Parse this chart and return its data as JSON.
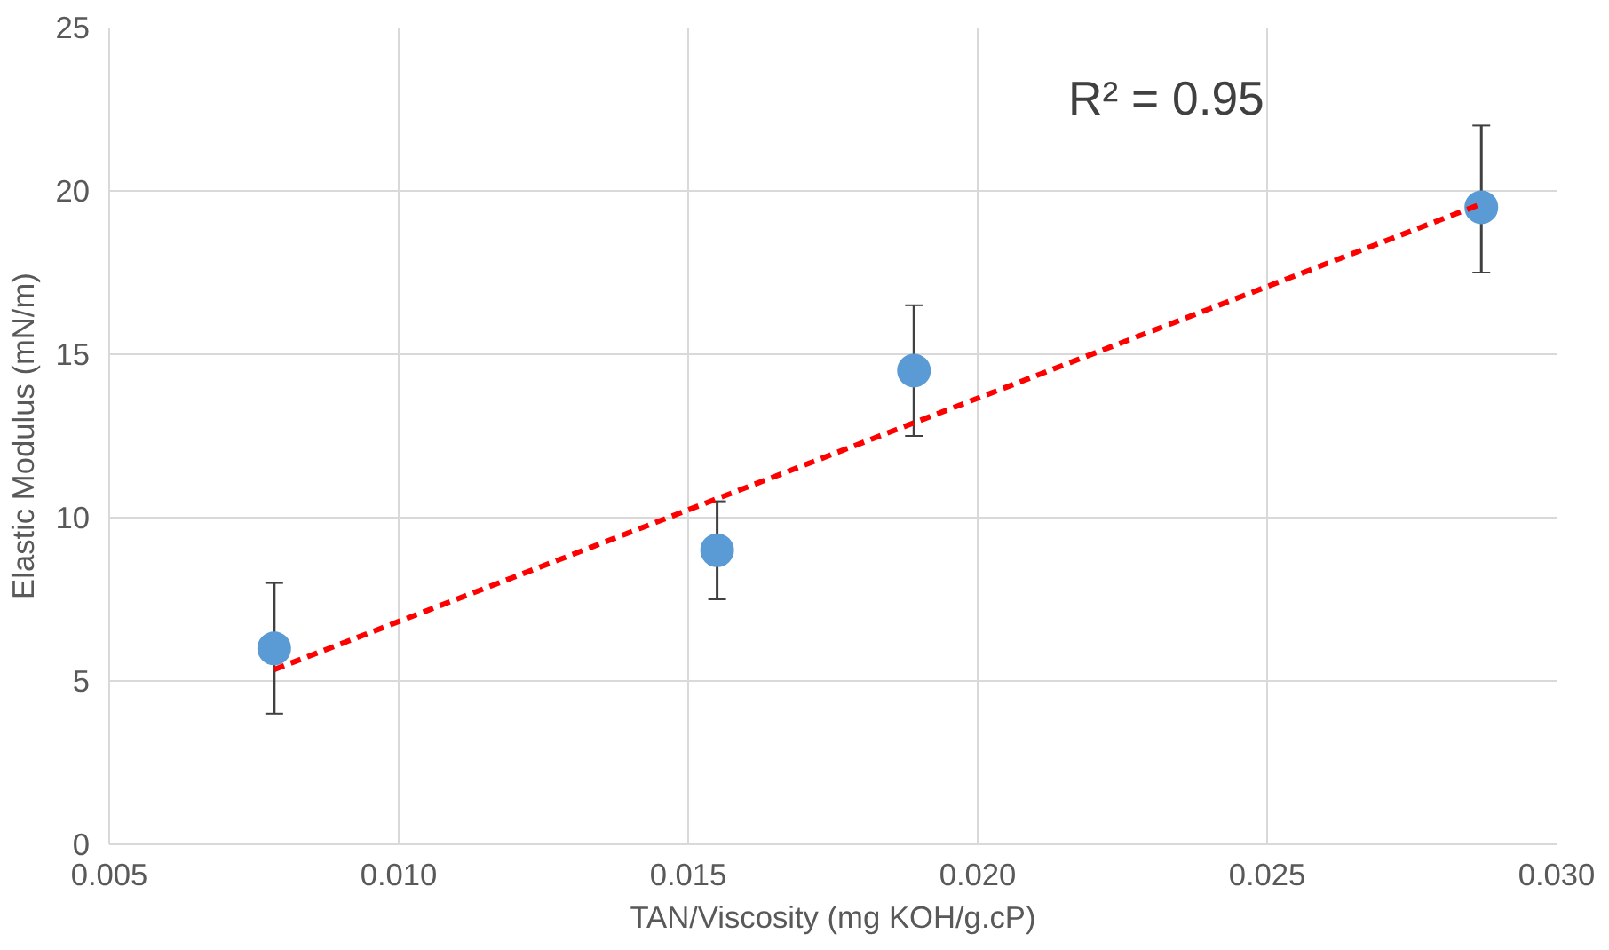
{
  "chart_data": {
    "type": "scatter",
    "xlabel": "TAN/Viscosity (mg KOH/g.cP)",
    "ylabel": "Elastic Modulus (mN/m)",
    "xlim": [
      0.005,
      0.03
    ],
    "xticks": [
      {
        "value": 0.005,
        "label": "0.005"
      },
      {
        "value": 0.01,
        "label": "0.010"
      },
      {
        "value": 0.015,
        "label": "0.015"
      },
      {
        "value": 0.02,
        "label": "0.020"
      },
      {
        "value": 0.025,
        "label": "0.025"
      },
      {
        "value": 0.03,
        "label": "0.030"
      }
    ],
    "ylim": [
      0,
      25
    ],
    "yticks": [
      0,
      5,
      10,
      15,
      20,
      25
    ],
    "grid": true,
    "marker": "circle",
    "series": [
      {
        "color": "#5b9bd5",
        "x": [
          0.00785,
          0.0155,
          0.0189,
          0.0287
        ],
        "values": [
          6,
          9,
          14.5,
          19.5
        ],
        "errors": [
          2,
          1.5,
          2,
          [
            17.5,
            22
          ]
        ]
      },
      {
        "type": "line",
        "color": "#ff0000",
        "line_style": "dashed",
        "marker": "none",
        "x": [
          0.00785,
          0.0287
        ],
        "values": [
          5.35,
          19.6
        ]
      }
    ],
    "annotations": [
      "R² = 0.95"
    ]
  }
}
